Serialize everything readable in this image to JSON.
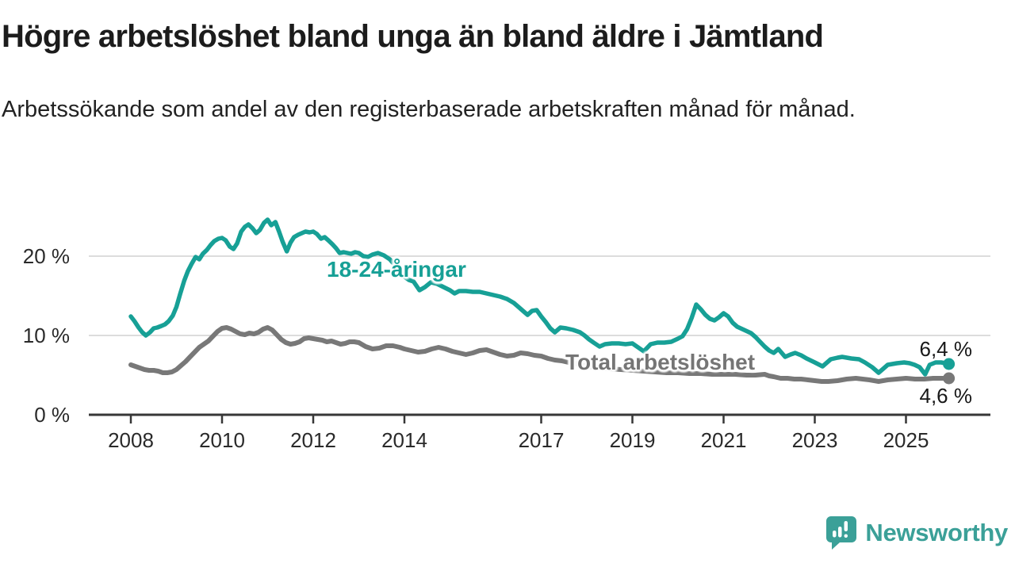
{
  "title": "Högre arbetslöshet bland unga än bland äldre i Jämtland",
  "subtitle": "Arbetssökande som andel av den registerbaserade arbetskraften månad för månad.",
  "branding": {
    "name": "Newsworthy",
    "color": "#3ba098"
  },
  "chart_data": {
    "type": "line",
    "unit": "%",
    "grid": true,
    "y_axis": {
      "tick_values": [
        0,
        10,
        20
      ],
      "tick_labels": [
        "0 %",
        "10 %",
        "20 %"
      ],
      "range": [
        0,
        26
      ]
    },
    "x_axis": {
      "tick_values": [
        2008,
        2010,
        2012,
        2014,
        2017,
        2019,
        2021,
        2023,
        2025
      ],
      "tick_labels": [
        "2008",
        "2010",
        "2012",
        "2014",
        "2017",
        "2019",
        "2021",
        "2023",
        "2025"
      ],
      "range": [
        2007.1,
        2026.8
      ]
    },
    "series": [
      {
        "name": "18-24-åringar",
        "color": "#17a096",
        "end_value_label": "6,4 %",
        "points": [
          [
            2008.0,
            12.4
          ],
          [
            2008.08,
            11.8
          ],
          [
            2008.17,
            11.0
          ],
          [
            2008.25,
            10.4
          ],
          [
            2008.33,
            10.0
          ],
          [
            2008.42,
            10.4
          ],
          [
            2008.5,
            10.9
          ],
          [
            2008.58,
            11.0
          ],
          [
            2008.67,
            11.2
          ],
          [
            2008.75,
            11.4
          ],
          [
            2008.83,
            11.8
          ],
          [
            2008.92,
            12.5
          ],
          [
            2009.0,
            13.6
          ],
          [
            2009.08,
            15.2
          ],
          [
            2009.17,
            16.9
          ],
          [
            2009.25,
            18.1
          ],
          [
            2009.33,
            19.0
          ],
          [
            2009.42,
            19.9
          ],
          [
            2009.5,
            19.6
          ],
          [
            2009.58,
            20.3
          ],
          [
            2009.67,
            20.8
          ],
          [
            2009.75,
            21.4
          ],
          [
            2009.83,
            21.9
          ],
          [
            2009.92,
            22.2
          ],
          [
            2010.0,
            22.3
          ],
          [
            2010.08,
            22.0
          ],
          [
            2010.17,
            21.2
          ],
          [
            2010.25,
            20.9
          ],
          [
            2010.33,
            21.6
          ],
          [
            2010.42,
            23.1
          ],
          [
            2010.5,
            23.7
          ],
          [
            2010.58,
            24.0
          ],
          [
            2010.67,
            23.5
          ],
          [
            2010.75,
            22.9
          ],
          [
            2010.83,
            23.3
          ],
          [
            2010.92,
            24.2
          ],
          [
            2011.0,
            24.6
          ],
          [
            2011.08,
            23.9
          ],
          [
            2011.17,
            24.3
          ],
          [
            2011.25,
            23.1
          ],
          [
            2011.33,
            21.8
          ],
          [
            2011.42,
            20.6
          ],
          [
            2011.5,
            21.7
          ],
          [
            2011.58,
            22.4
          ],
          [
            2011.67,
            22.7
          ],
          [
            2011.75,
            22.9
          ],
          [
            2011.83,
            23.1
          ],
          [
            2011.92,
            23.0
          ],
          [
            2012.0,
            23.1
          ],
          [
            2012.08,
            22.8
          ],
          [
            2012.17,
            22.2
          ],
          [
            2012.25,
            22.4
          ],
          [
            2012.33,
            22.0
          ],
          [
            2012.42,
            21.5
          ],
          [
            2012.5,
            21.0
          ],
          [
            2012.58,
            20.4
          ],
          [
            2012.67,
            20.5
          ],
          [
            2012.75,
            20.4
          ],
          [
            2012.83,
            20.3
          ],
          [
            2012.92,
            20.5
          ],
          [
            2013.0,
            20.4
          ],
          [
            2013.1,
            20.0
          ],
          [
            2013.2,
            19.9
          ],
          [
            2013.3,
            20.2
          ],
          [
            2013.42,
            20.4
          ],
          [
            2013.55,
            20.1
          ],
          [
            2013.68,
            19.6
          ],
          [
            2013.8,
            18.8
          ],
          [
            2013.9,
            18.1
          ],
          [
            2014.0,
            17.4
          ],
          [
            2014.1,
            17.0
          ],
          [
            2014.2,
            16.8
          ],
          [
            2014.33,
            15.7
          ],
          [
            2014.45,
            16.1
          ],
          [
            2014.58,
            16.7
          ],
          [
            2014.72,
            16.5
          ],
          [
            2014.86,
            16.1
          ],
          [
            2015.0,
            15.7
          ],
          [
            2015.1,
            15.3
          ],
          [
            2015.2,
            15.6
          ],
          [
            2015.35,
            15.6
          ],
          [
            2015.5,
            15.5
          ],
          [
            2015.65,
            15.5
          ],
          [
            2015.8,
            15.3
          ],
          [
            2015.95,
            15.1
          ],
          [
            2016.1,
            14.9
          ],
          [
            2016.25,
            14.6
          ],
          [
            2016.4,
            14.1
          ],
          [
            2016.5,
            13.6
          ],
          [
            2016.6,
            13.1
          ],
          [
            2016.7,
            12.6
          ],
          [
            2016.8,
            13.1
          ],
          [
            2016.9,
            13.2
          ],
          [
            2017.0,
            12.4
          ],
          [
            2017.1,
            11.7
          ],
          [
            2017.2,
            10.9
          ],
          [
            2017.3,
            10.4
          ],
          [
            2017.42,
            11.0
          ],
          [
            2017.55,
            10.9
          ],
          [
            2017.7,
            10.7
          ],
          [
            2017.85,
            10.4
          ],
          [
            2017.95,
            10.0
          ],
          [
            2018.05,
            9.5
          ],
          [
            2018.15,
            9.1
          ],
          [
            2018.28,
            8.6
          ],
          [
            2018.4,
            8.9
          ],
          [
            2018.55,
            9.0
          ],
          [
            2018.7,
            9.0
          ],
          [
            2018.85,
            8.9
          ],
          [
            2019.0,
            9.0
          ],
          [
            2019.1,
            8.6
          ],
          [
            2019.25,
            8.0
          ],
          [
            2019.4,
            8.9
          ],
          [
            2019.55,
            9.1
          ],
          [
            2019.7,
            9.1
          ],
          [
            2019.85,
            9.2
          ],
          [
            2020.0,
            9.6
          ],
          [
            2020.1,
            9.9
          ],
          [
            2020.2,
            10.8
          ],
          [
            2020.3,
            12.2
          ],
          [
            2020.4,
            13.9
          ],
          [
            2020.5,
            13.3
          ],
          [
            2020.6,
            12.6
          ],
          [
            2020.7,
            12.1
          ],
          [
            2020.8,
            11.9
          ],
          [
            2020.9,
            12.3
          ],
          [
            2021.0,
            12.8
          ],
          [
            2021.1,
            12.4
          ],
          [
            2021.2,
            11.6
          ],
          [
            2021.3,
            11.1
          ],
          [
            2021.45,
            10.7
          ],
          [
            2021.6,
            10.3
          ],
          [
            2021.7,
            9.8
          ],
          [
            2021.8,
            9.2
          ],
          [
            2021.9,
            8.6
          ],
          [
            2022.0,
            8.1
          ],
          [
            2022.1,
            7.8
          ],
          [
            2022.2,
            8.3
          ],
          [
            2022.35,
            7.3
          ],
          [
            2022.47,
            7.6
          ],
          [
            2022.57,
            7.8
          ],
          [
            2022.7,
            7.5
          ],
          [
            2022.82,
            7.1
          ],
          [
            2023.0,
            6.6
          ],
          [
            2023.17,
            6.1
          ],
          [
            2023.35,
            7.0
          ],
          [
            2023.5,
            7.2
          ],
          [
            2023.6,
            7.3
          ],
          [
            2023.8,
            7.1
          ],
          [
            2023.97,
            7.0
          ],
          [
            2024.1,
            6.6
          ],
          [
            2024.26,
            6.0
          ],
          [
            2024.4,
            5.3
          ],
          [
            2024.5,
            5.8
          ],
          [
            2024.6,
            6.3
          ],
          [
            2024.8,
            6.5
          ],
          [
            2024.96,
            6.6
          ],
          [
            2025.08,
            6.5
          ],
          [
            2025.19,
            6.3
          ],
          [
            2025.3,
            6.0
          ],
          [
            2025.42,
            5.1
          ],
          [
            2025.52,
            6.3
          ],
          [
            2025.65,
            6.6
          ],
          [
            2025.77,
            6.6
          ],
          [
            2025.87,
            6.5
          ],
          [
            2025.94,
            6.4
          ]
        ]
      },
      {
        "name": "Total arbetslöshet",
        "color": "#787878",
        "end_value_label": "4,6 %",
        "points": [
          [
            2008.0,
            6.3
          ],
          [
            2008.1,
            6.1
          ],
          [
            2008.2,
            5.9
          ],
          [
            2008.3,
            5.7
          ],
          [
            2008.4,
            5.6
          ],
          [
            2008.5,
            5.6
          ],
          [
            2008.6,
            5.5
          ],
          [
            2008.7,
            5.3
          ],
          [
            2008.8,
            5.3
          ],
          [
            2008.9,
            5.4
          ],
          [
            2009.0,
            5.7
          ],
          [
            2009.1,
            6.2
          ],
          [
            2009.2,
            6.7
          ],
          [
            2009.3,
            7.3
          ],
          [
            2009.4,
            7.9
          ],
          [
            2009.5,
            8.5
          ],
          [
            2009.6,
            8.9
          ],
          [
            2009.7,
            9.3
          ],
          [
            2009.8,
            9.9
          ],
          [
            2009.9,
            10.5
          ],
          [
            2010.0,
            10.9
          ],
          [
            2010.1,
            11.0
          ],
          [
            2010.2,
            10.8
          ],
          [
            2010.3,
            10.5
          ],
          [
            2010.4,
            10.2
          ],
          [
            2010.5,
            10.1
          ],
          [
            2010.6,
            10.3
          ],
          [
            2010.7,
            10.2
          ],
          [
            2010.8,
            10.4
          ],
          [
            2010.9,
            10.8
          ],
          [
            2011.0,
            11.0
          ],
          [
            2011.1,
            10.7
          ],
          [
            2011.2,
            10.1
          ],
          [
            2011.3,
            9.5
          ],
          [
            2011.4,
            9.1
          ],
          [
            2011.5,
            8.9
          ],
          [
            2011.6,
            9.0
          ],
          [
            2011.7,
            9.2
          ],
          [
            2011.8,
            9.6
          ],
          [
            2011.9,
            9.7
          ],
          [
            2012.0,
            9.6
          ],
          [
            2012.1,
            9.5
          ],
          [
            2012.2,
            9.4
          ],
          [
            2012.3,
            9.2
          ],
          [
            2012.4,
            9.3
          ],
          [
            2012.5,
            9.1
          ],
          [
            2012.6,
            8.9
          ],
          [
            2012.7,
            9.0
          ],
          [
            2012.8,
            9.2
          ],
          [
            2012.9,
            9.2
          ],
          [
            2013.0,
            9.1
          ],
          [
            2013.15,
            8.6
          ],
          [
            2013.3,
            8.3
          ],
          [
            2013.45,
            8.4
          ],
          [
            2013.6,
            8.7
          ],
          [
            2013.75,
            8.7
          ],
          [
            2013.9,
            8.5
          ],
          [
            2014.0,
            8.3
          ],
          [
            2014.15,
            8.1
          ],
          [
            2014.3,
            7.9
          ],
          [
            2014.45,
            8.0
          ],
          [
            2014.6,
            8.3
          ],
          [
            2014.75,
            8.5
          ],
          [
            2014.9,
            8.3
          ],
          [
            2015.05,
            8.0
          ],
          [
            2015.2,
            7.8
          ],
          [
            2015.35,
            7.6
          ],
          [
            2015.5,
            7.8
          ],
          [
            2015.65,
            8.1
          ],
          [
            2015.8,
            8.2
          ],
          [
            2015.95,
            7.9
          ],
          [
            2016.1,
            7.6
          ],
          [
            2016.25,
            7.4
          ],
          [
            2016.4,
            7.5
          ],
          [
            2016.55,
            7.8
          ],
          [
            2016.7,
            7.7
          ],
          [
            2016.85,
            7.5
          ],
          [
            2017.0,
            7.4
          ],
          [
            2017.15,
            7.1
          ],
          [
            2017.3,
            6.9
          ],
          [
            2017.45,
            6.8
          ],
          [
            2017.6,
            6.6
          ],
          [
            2017.8,
            6.4
          ],
          [
            2018.0,
            6.1
          ],
          [
            2018.25,
            5.9
          ],
          [
            2018.5,
            5.8
          ],
          [
            2018.75,
            5.7
          ],
          [
            2019.0,
            5.6
          ],
          [
            2019.25,
            5.5
          ],
          [
            2019.5,
            5.4
          ],
          [
            2019.75,
            5.3
          ],
          [
            2020.0,
            5.3
          ],
          [
            2020.25,
            5.2
          ],
          [
            2020.5,
            5.2
          ],
          [
            2020.75,
            5.1
          ],
          [
            2021.0,
            5.1
          ],
          [
            2021.25,
            5.1
          ],
          [
            2021.5,
            5.0
          ],
          [
            2021.7,
            5.0
          ],
          [
            2021.9,
            5.1
          ],
          [
            2022.0,
            4.9
          ],
          [
            2022.1,
            4.8
          ],
          [
            2022.25,
            4.6
          ],
          [
            2022.4,
            4.6
          ],
          [
            2022.55,
            4.5
          ],
          [
            2022.7,
            4.5
          ],
          [
            2022.85,
            4.4
          ],
          [
            2023.0,
            4.3
          ],
          [
            2023.15,
            4.2
          ],
          [
            2023.3,
            4.2
          ],
          [
            2023.5,
            4.3
          ],
          [
            2023.7,
            4.5
          ],
          [
            2023.9,
            4.6
          ],
          [
            2024.05,
            4.5
          ],
          [
            2024.2,
            4.4
          ],
          [
            2024.4,
            4.2
          ],
          [
            2024.6,
            4.4
          ],
          [
            2024.8,
            4.5
          ],
          [
            2025.0,
            4.6
          ],
          [
            2025.2,
            4.5
          ],
          [
            2025.4,
            4.5
          ],
          [
            2025.6,
            4.6
          ],
          [
            2025.8,
            4.6
          ],
          [
            2025.94,
            4.6
          ]
        ]
      }
    ]
  }
}
